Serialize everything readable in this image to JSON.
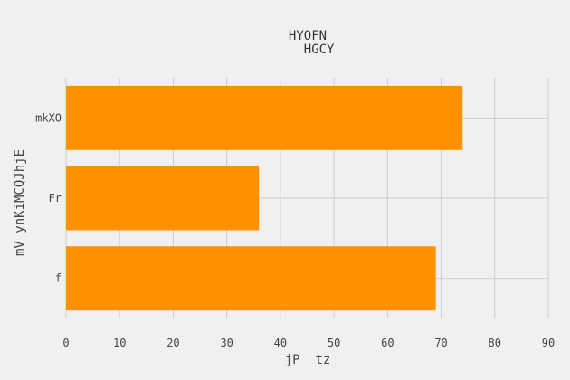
{
  "chart_data": {
    "type": "bar",
    "orientation": "horizontal",
    "title_lines": [
      "HYOFN",
      "   HGCY"
    ],
    "xlabel": "jP  tz",
    "ylabel": "mV ynKiMCQJhjE",
    "categories": [
      "f",
      "Fr",
      "mkXO"
    ],
    "values": [
      69,
      36,
      74
    ],
    "xlim": [
      0,
      90
    ],
    "xticks": [
      0,
      10,
      20,
      30,
      40,
      50,
      60,
      70,
      80,
      90
    ],
    "grid": true,
    "bar_color": "#ff9100",
    "background": "#f0f0f0"
  }
}
